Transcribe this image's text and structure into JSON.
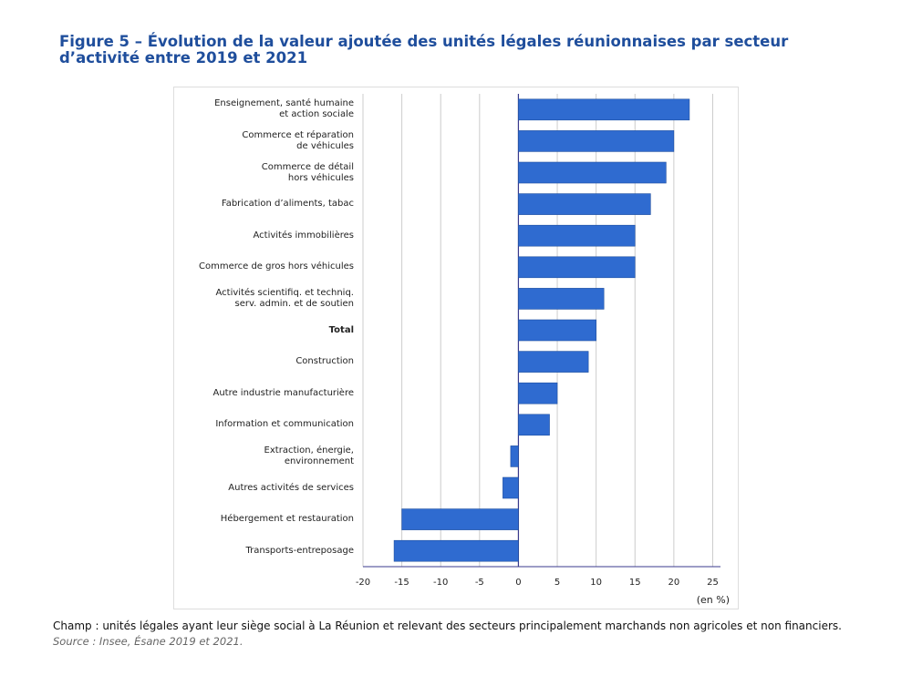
{
  "chart_data": {
    "type": "barh",
    "title": "Figure 5 – Évolution de la valeur ajoutée des unités légales réunionnaises par secteur d’activité entre 2019 et 2021",
    "categories": [
      "Enseignement, santé humaine\net action sociale",
      "Commerce et réparation\nde véhicules",
      "Commerce de détail\nhors véhicules",
      "Fabrication d’aliments, tabac",
      "Activités immobilières",
      "Commerce de gros hors véhicules",
      "Activités scientifiq. et techniq.\nserv. admin. et de soutien",
      "Total",
      "Construction",
      "Autre industrie manufacturière",
      "Information et communication",
      "Extraction, énergie,\nenvironnement",
      "Autres activités de services",
      "Hébergement et restauration",
      "Transports-entreposage"
    ],
    "values": [
      22,
      20,
      19,
      17,
      15,
      15,
      11,
      10,
      9,
      5,
      4,
      -1,
      -2,
      -15,
      -16
    ],
    "color": "#2f6bd0",
    "bold_category_index": 7,
    "xlim": [
      -20,
      26
    ],
    "xticks": [
      -20,
      -15,
      -10,
      -5,
      0,
      5,
      10,
      15,
      20,
      25
    ],
    "x_unit_label": "(en %)",
    "grid": true,
    "note": "Champ : unités légales ayant leur siège social à La Réunion et relevant des secteurs principalement marchands non agricoles et non financiers.",
    "source": "Source : Insee, Ésane 2019 et 2021."
  }
}
